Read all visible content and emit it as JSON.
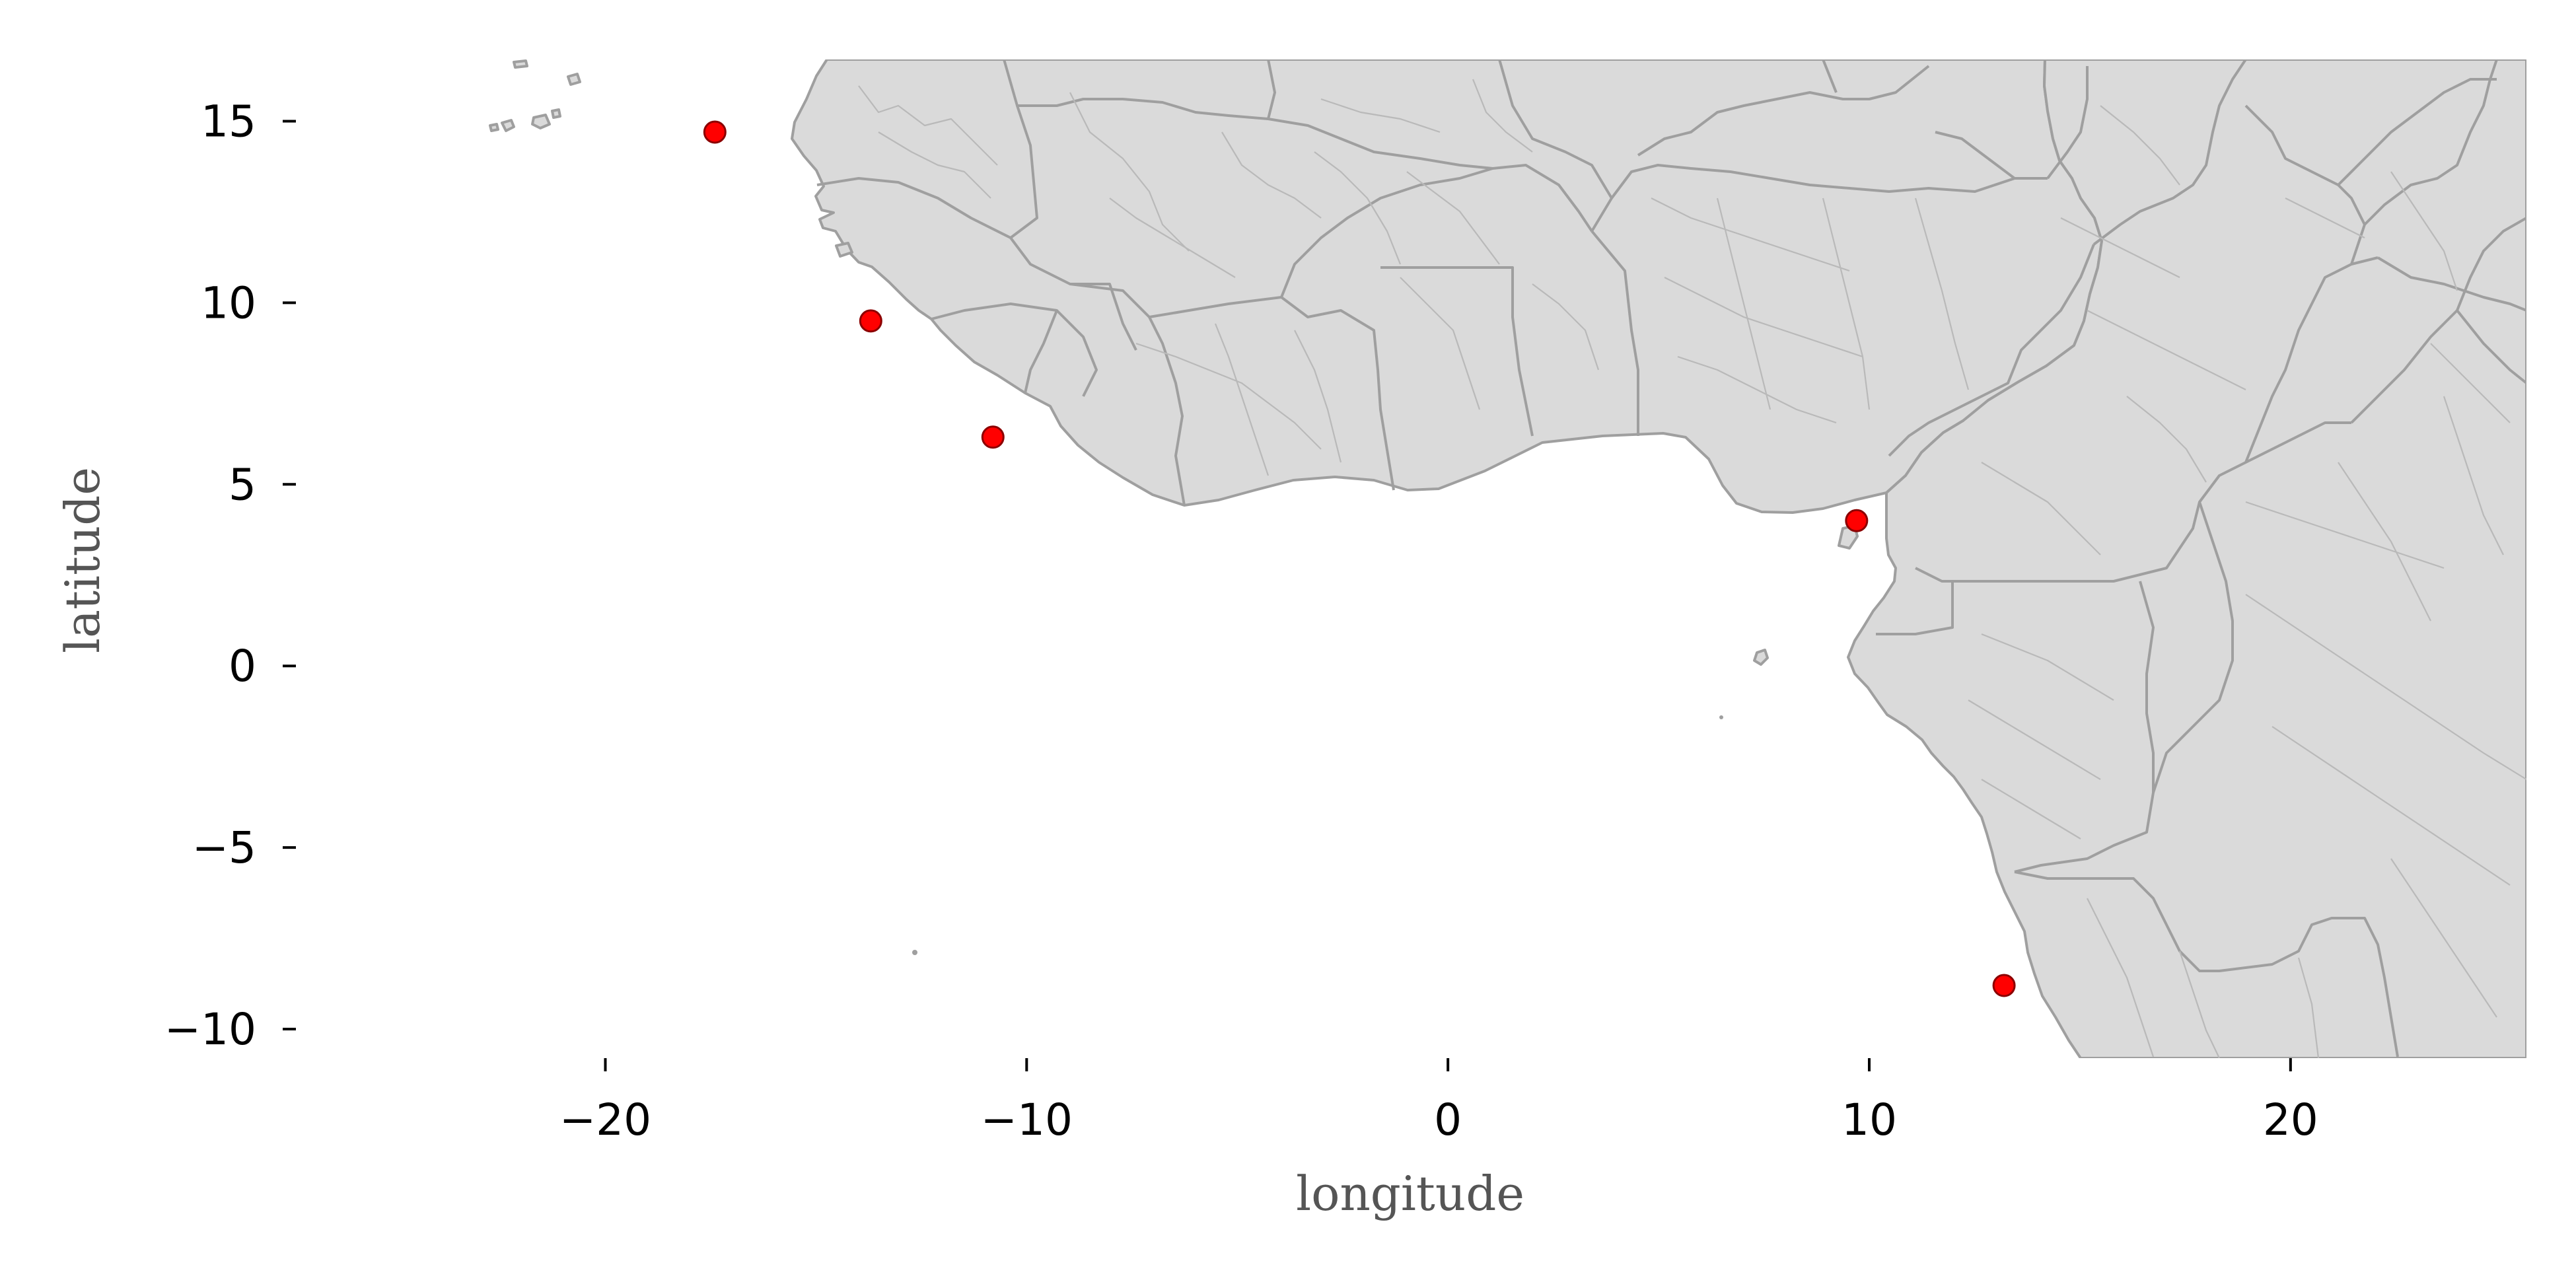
{
  "chart_data": {
    "type": "scatter",
    "title": "",
    "xlabel": "longitude",
    "ylabel": "latitude",
    "xlim": [
      -27.0,
      25.6
    ],
    "ylim": [
      -10.8,
      16.7
    ],
    "xticks": [
      -20,
      -10,
      0,
      10,
      20
    ],
    "yticks": [
      15,
      10,
      5,
      0,
      -5,
      -10
    ],
    "xtick_labels": [
      "−20",
      "−10",
      "0",
      "10",
      "20"
    ],
    "ytick_labels": [
      "15",
      "10",
      "5",
      "0",
      "−5",
      "−10"
    ],
    "grid": false,
    "legend": "none",
    "basemap": "West and Central Africa administrative boundaries",
    "colors": {
      "land": "#dadada",
      "border": "#9f9f9f",
      "admin_border": "#b9b9b9",
      "point_fill": "#ff0000",
      "point_edge": "#8b0000"
    },
    "points": [
      {
        "lon": -17.4,
        "lat": 14.7
      },
      {
        "lon": -13.7,
        "lat": 9.5
      },
      {
        "lon": -10.8,
        "lat": 6.3
      },
      {
        "lon": 9.7,
        "lat": 4.0
      },
      {
        "lon": 13.2,
        "lat": -8.8
      }
    ]
  }
}
